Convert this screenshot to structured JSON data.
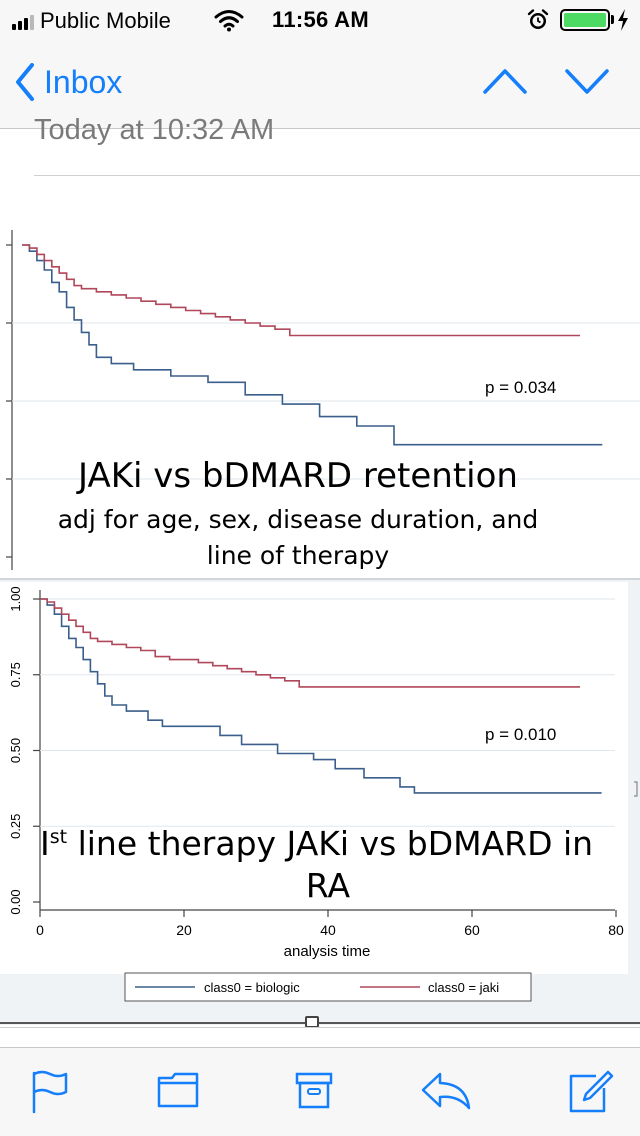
{
  "status_bar": {
    "carrier": "Public Mobile",
    "time": "11:56 AM",
    "icons": [
      "signal-bars-icon",
      "wifi-icon",
      "alarm-icon",
      "battery-icon",
      "charging-bolt-icon"
    ]
  },
  "nav": {
    "back_label": "Inbox",
    "icons": [
      "chevron-left-icon",
      "previous-message-up-icon",
      "next-message-down-icon"
    ]
  },
  "message": {
    "date_text": "Today at 10:32 AM"
  },
  "colors": {
    "accent": "#147efb",
    "biologic_line": "#3b5f8c",
    "jaki_line": "#b0475a",
    "battery_fill": "#4cd964"
  },
  "overlays": {
    "top_title": "JAKi vs bDMARD retention",
    "top_subtitle_1": "adj for age, sex, disease duration, and",
    "top_subtitle_2": "line of therapy",
    "bottom_title_prefix": "I",
    "bottom_title_sup": "st",
    "bottom_title_rest": " line therapy JAKi vs bDMARD in",
    "bottom_title_line2": "RA"
  },
  "chart_data": [
    {
      "type": "line",
      "title": "",
      "xlabel": "",
      "ylabel": "",
      "xlim": [
        0,
        80
      ],
      "ylim": [
        0,
        1
      ],
      "annotation": "p = 0.034",
      "series": [
        {
          "name": "",
          "color": "#3b5f8c",
          "points": [
            [
              0,
              1.0
            ],
            [
              1,
              0.98
            ],
            [
              2,
              0.95
            ],
            [
              3,
              0.92
            ],
            [
              4,
              0.88
            ],
            [
              5,
              0.85
            ],
            [
              6,
              0.8
            ],
            [
              7,
              0.76
            ],
            [
              8,
              0.72
            ],
            [
              9,
              0.68
            ],
            [
              10,
              0.64
            ],
            [
              12,
              0.62
            ],
            [
              15,
              0.6
            ],
            [
              20,
              0.58
            ],
            [
              25,
              0.56
            ],
            [
              30,
              0.52
            ],
            [
              35,
              0.49
            ],
            [
              40,
              0.45
            ],
            [
              45,
              0.42
            ],
            [
              50,
              0.36
            ],
            [
              55,
              0.36
            ],
            [
              60,
              0.36
            ],
            [
              65,
              0.36
            ],
            [
              70,
              0.36
            ],
            [
              75,
              0.36
            ],
            [
              78,
              0.36
            ]
          ]
        },
        {
          "name": "",
          "color": "#b0475a",
          "points": [
            [
              0,
              1.0
            ],
            [
              1,
              0.99
            ],
            [
              2,
              0.97
            ],
            [
              3,
              0.95
            ],
            [
              4,
              0.93
            ],
            [
              5,
              0.91
            ],
            [
              6,
              0.89
            ],
            [
              7,
              0.87
            ],
            [
              8,
              0.86
            ],
            [
              10,
              0.85
            ],
            [
              12,
              0.84
            ],
            [
              14,
              0.83
            ],
            [
              16,
              0.82
            ],
            [
              18,
              0.81
            ],
            [
              20,
              0.8
            ],
            [
              22,
              0.79
            ],
            [
              24,
              0.78
            ],
            [
              26,
              0.77
            ],
            [
              28,
              0.76
            ],
            [
              30,
              0.75
            ],
            [
              32,
              0.74
            ],
            [
              34,
              0.73
            ],
            [
              36,
              0.71
            ],
            [
              40,
              0.71
            ],
            [
              50,
              0.71
            ],
            [
              60,
              0.71
            ],
            [
              70,
              0.71
            ],
            [
              75,
              0.71
            ]
          ]
        }
      ]
    },
    {
      "type": "line",
      "title": "",
      "xlabel": "analysis time",
      "ylabel": "",
      "xlim": [
        0,
        80
      ],
      "ylim": [
        0,
        1
      ],
      "x_ticks": [
        "0",
        "20",
        "40",
        "60",
        "80"
      ],
      "y_ticks": [
        "0.00",
        "0.25",
        "0.50",
        "0.75",
        "1.00"
      ],
      "annotation": "p = 0.010",
      "legend_position": "bottom",
      "legend": [
        "class0 = biologic",
        "class0 = jaki"
      ],
      "series": [
        {
          "name": "class0 = biologic",
          "color": "#3b5f8c",
          "points": [
            [
              0,
              1.0
            ],
            [
              1,
              0.98
            ],
            [
              2,
              0.95
            ],
            [
              3,
              0.91
            ],
            [
              4,
              0.87
            ],
            [
              5,
              0.84
            ],
            [
              6,
              0.8
            ],
            [
              7,
              0.76
            ],
            [
              8,
              0.72
            ],
            [
              9,
              0.68
            ],
            [
              10,
              0.65
            ],
            [
              12,
              0.63
            ],
            [
              15,
              0.6
            ],
            [
              17,
              0.58
            ],
            [
              20,
              0.58
            ],
            [
              25,
              0.55
            ],
            [
              28,
              0.52
            ],
            [
              33,
              0.49
            ],
            [
              38,
              0.47
            ],
            [
              41,
              0.44
            ],
            [
              45,
              0.41
            ],
            [
              50,
              0.38
            ],
            [
              52,
              0.36
            ],
            [
              60,
              0.36
            ],
            [
              70,
              0.36
            ],
            [
              78,
              0.36
            ]
          ]
        },
        {
          "name": "class0 = jaki",
          "color": "#b0475a",
          "points": [
            [
              0,
              1.0
            ],
            [
              1,
              0.99
            ],
            [
              2,
              0.97
            ],
            [
              3,
              0.95
            ],
            [
              4,
              0.93
            ],
            [
              5,
              0.91
            ],
            [
              6,
              0.89
            ],
            [
              7,
              0.87
            ],
            [
              8,
              0.86
            ],
            [
              10,
              0.85
            ],
            [
              12,
              0.84
            ],
            [
              14,
              0.83
            ],
            [
              16,
              0.81
            ],
            [
              18,
              0.8
            ],
            [
              20,
              0.8
            ],
            [
              22,
              0.79
            ],
            [
              24,
              0.78
            ],
            [
              26,
              0.77
            ],
            [
              28,
              0.76
            ],
            [
              30,
              0.75
            ],
            [
              32,
              0.74
            ],
            [
              34,
              0.73
            ],
            [
              36,
              0.71
            ],
            [
              40,
              0.71
            ],
            [
              50,
              0.71
            ],
            [
              60,
              0.71
            ],
            [
              70,
              0.71
            ],
            [
              75,
              0.71
            ]
          ]
        }
      ]
    }
  ]
}
